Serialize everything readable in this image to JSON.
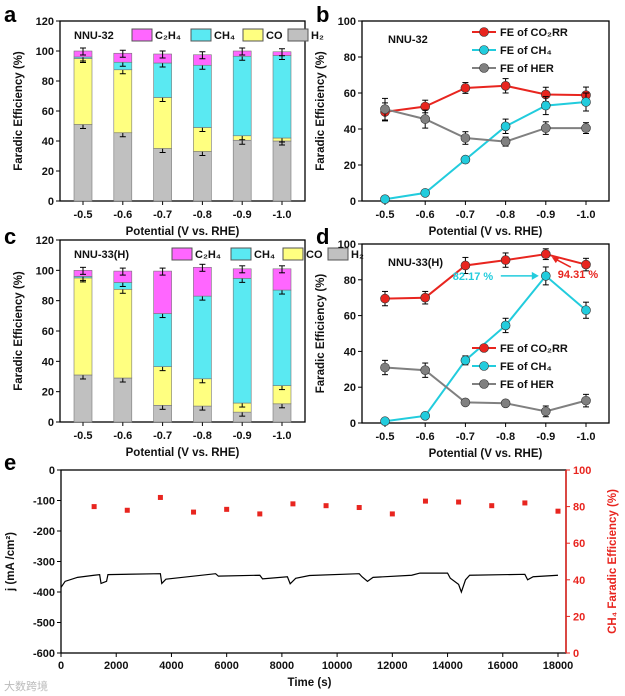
{
  "chart_data": [
    {
      "panel": "a",
      "type": "bar",
      "stacked": true,
      "title": "NNU-32",
      "categories": [
        "-0.5",
        "-0.6",
        "-0.7",
        "-0.8",
        "-0.9",
        "-1.0"
      ],
      "xlabel": "Potential (V vs. RHE)",
      "ylabel": "Faradic Efficiency (%)",
      "ylim": [
        0,
        120
      ],
      "yticks": [
        0,
        20,
        40,
        60,
        80,
        100,
        120
      ],
      "legend_position": "top",
      "series": [
        {
          "name": "H₂",
          "color": "#c0c0c0",
          "values": [
            51,
            45.5,
            35,
            33,
            40.5,
            40
          ]
        },
        {
          "name": "CO",
          "color": "#ffff80",
          "values": [
            44,
            42,
            34,
            16,
            3,
            2
          ]
        },
        {
          "name": "CH₄",
          "color": "#5ae9f2",
          "values": [
            1,
            5,
            23,
            41.5,
            53,
            55
          ]
        },
        {
          "name": "C₂H₄",
          "color": "#ff66ff",
          "values": [
            4,
            6,
            6,
            7,
            3.5,
            2.5
          ]
        }
      ]
    },
    {
      "panel": "b",
      "type": "line",
      "title": "NNU-32",
      "categories": [
        "-0.5",
        "-0.6",
        "-0.7",
        "-0.8",
        "-0.9",
        "-1.0"
      ],
      "xlabel": "Potential (V vs. RHE)",
      "ylabel": "Faradic Efficiency (%)",
      "ylim": [
        0,
        100
      ],
      "yticks": [
        0,
        20,
        40,
        60,
        80,
        100
      ],
      "legend_position": "top-right",
      "series": [
        {
          "name": "FE of CO₂RR",
          "color": "#e8251f",
          "values": [
            49.5,
            52.5,
            62.8,
            64,
            59.2,
            58.8
          ],
          "errors": [
            5,
            3.5,
            3,
            4,
            4,
            4.5
          ]
        },
        {
          "name": "FE of CH₄",
          "color": "#22ccdd",
          "values": [
            1,
            4.5,
            23,
            41.5,
            53,
            55
          ],
          "errors": [
            1,
            1.5,
            1.5,
            4,
            5,
            5
          ]
        },
        {
          "name": "FE of HER",
          "color": "#808080",
          "values": [
            51,
            45.5,
            35,
            33,
            40.5,
            40.5
          ],
          "errors": [
            6,
            5,
            3.5,
            2.5,
            3.5,
            3
          ]
        }
      ]
    },
    {
      "panel": "c",
      "type": "bar",
      "stacked": true,
      "title": "NNU-33(H)",
      "categories": [
        "-0.5",
        "-0.6",
        "-0.7",
        "-0.8",
        "-0.9",
        "-1.0"
      ],
      "xlabel": "Potential (V vs. RHE)",
      "ylabel": "Faradic Efficiency (%)",
      "ylim": [
        0,
        120
      ],
      "yticks": [
        0,
        20,
        40,
        60,
        80,
        100,
        120
      ],
      "legend_position": "top",
      "series": [
        {
          "name": "H₂",
          "color": "#c0c0c0",
          "values": [
            31,
            29,
            11,
            10.5,
            6.5,
            12
          ]
        },
        {
          "name": "CO",
          "color": "#ffff80",
          "values": [
            64,
            58.5,
            25.5,
            18,
            6,
            12
          ]
        },
        {
          "name": "CH₄",
          "color": "#5ae9f2",
          "values": [
            1,
            4.5,
            35,
            54.5,
            82.2,
            63
          ]
        },
        {
          "name": "C₂H₄",
          "color": "#ff66ff",
          "values": [
            4,
            7.5,
            28,
            19,
            6.3,
            14
          ]
        }
      ]
    },
    {
      "panel": "d",
      "type": "line",
      "title": "NNU-33(H)",
      "categories": [
        "-0.5",
        "-0.6",
        "-0.7",
        "-0.8",
        "-0.9",
        "-1.0"
      ],
      "xlabel": "Potential (V vs. RHE)",
      "ylabel": "Faradic Efficiency (%)",
      "ylim": [
        0,
        100
      ],
      "yticks": [
        0,
        20,
        40,
        60,
        80,
        100
      ],
      "legend_position": "center-right",
      "annotations": [
        {
          "text": "82.17 %",
          "color": "#22ccdd",
          "series": "FE of CH₄",
          "category": "-0.9"
        },
        {
          "text": "94.31 %",
          "color": "#e8251f",
          "series": "FE of CO₂RR",
          "category": "-0.9"
        }
      ],
      "series": [
        {
          "name": "FE of CO₂RR",
          "color": "#e8251f",
          "values": [
            69.5,
            70,
            88,
            91,
            94.31,
            88.5
          ],
          "errors": [
            4,
            3.5,
            4.5,
            4,
            3,
            3.5
          ]
        },
        {
          "name": "FE of CH₄",
          "color": "#22ccdd",
          "values": [
            1,
            4,
            35,
            54.5,
            82.17,
            63
          ],
          "errors": [
            1,
            1,
            2.5,
            4,
            5,
            4.5
          ]
        },
        {
          "name": "FE of HER",
          "color": "#808080",
          "values": [
            31,
            29.5,
            11.5,
            11,
            6.5,
            12.5
          ],
          "errors": [
            4,
            4,
            1.5,
            1.5,
            3,
            3.5
          ]
        }
      ]
    },
    {
      "panel": "e",
      "type": "line+scatter",
      "xlabel": "Time (s)",
      "ylabel": "j (mA /cm²)",
      "ylabel_right": "CH₄ Faradic Efficiency (%)",
      "xlim": [
        0,
        18000
      ],
      "xticks": [
        0,
        2000,
        4000,
        6000,
        8000,
        10000,
        12000,
        14000,
        16000,
        18000
      ],
      "ylim": [
        -600,
        0
      ],
      "yticks": [
        -600,
        -500,
        -400,
        -300,
        -200,
        -100,
        0
      ],
      "ylim_right": [
        0,
        100
      ],
      "yticks_right": [
        0,
        20,
        40,
        60,
        80,
        100
      ],
      "current": {
        "name": "current density",
        "color": "#000000",
        "points": [
          [
            0,
            -385
          ],
          [
            150,
            -365
          ],
          [
            600,
            -352
          ],
          [
            1200,
            -345
          ],
          [
            1400,
            -343
          ],
          [
            1450,
            -372
          ],
          [
            1650,
            -365
          ],
          [
            1700,
            -343
          ],
          [
            3600,
            -340
          ],
          [
            3650,
            -372
          ],
          [
            3800,
            -358
          ],
          [
            5600,
            -340
          ],
          [
            5700,
            -348
          ],
          [
            7200,
            -345
          ],
          [
            7300,
            -357
          ],
          [
            8200,
            -350
          ],
          [
            8300,
            -373
          ],
          [
            8500,
            -355
          ],
          [
            9000,
            -346
          ],
          [
            10800,
            -340
          ],
          [
            10900,
            -350
          ],
          [
            11100,
            -365
          ],
          [
            11300,
            -352
          ],
          [
            12700,
            -345
          ],
          [
            13000,
            -338
          ],
          [
            14000,
            -338
          ],
          [
            14100,
            -355
          ],
          [
            14400,
            -375
          ],
          [
            14500,
            -400
          ],
          [
            14650,
            -360
          ],
          [
            14800,
            -345
          ],
          [
            16800,
            -342
          ],
          [
            16900,
            -360
          ],
          [
            17100,
            -350
          ],
          [
            18000,
            -345
          ]
        ]
      },
      "fe": {
        "name": "CH₄ FE",
        "color": "#e8251f",
        "x": [
          1200,
          2400,
          3600,
          4800,
          6000,
          7200,
          8400,
          9600,
          10800,
          12000,
          13200,
          14400,
          15600,
          16800,
          18000
        ],
        "values": [
          80,
          78,
          85,
          77,
          78.5,
          76,
          81.5,
          80.5,
          79.5,
          76,
          83,
          82.5,
          80.5,
          82,
          77.5
        ]
      }
    }
  ],
  "panel_labels": [
    "a",
    "b",
    "c",
    "d",
    "e"
  ],
  "watermark": "大数跨境"
}
